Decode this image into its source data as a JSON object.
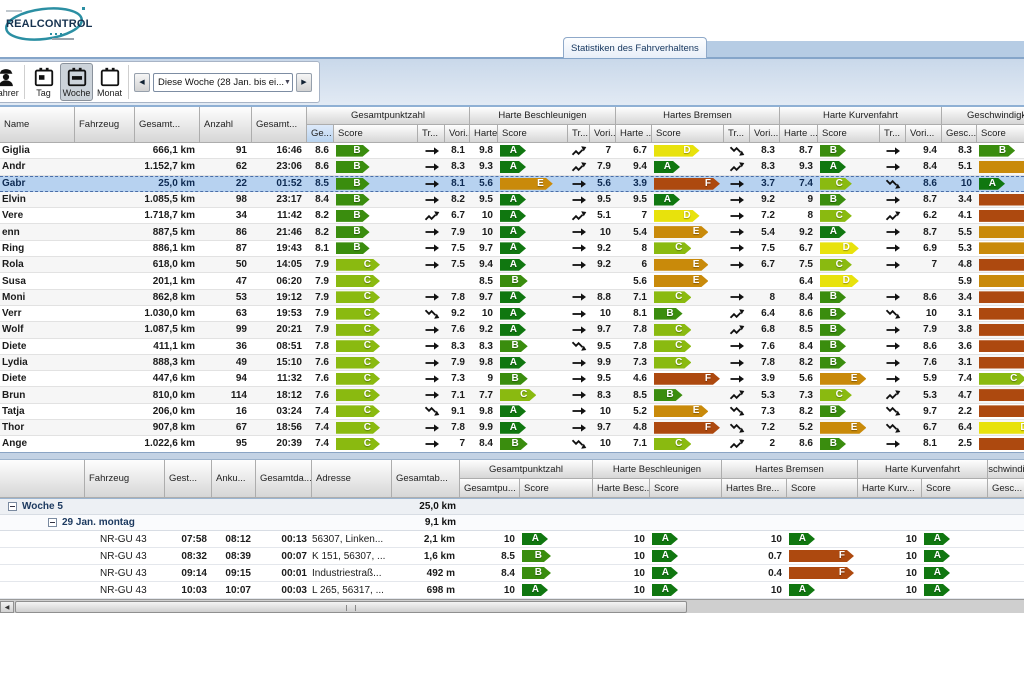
{
  "logo": {
    "brand": "REALCONTROL"
  },
  "tab": {
    "label": "Statistiken des Fahrverhaltens"
  },
  "toolbar": {
    "fahrer": "Fahrer",
    "tag": "Tag",
    "woche": "Woche",
    "monat": "Monat",
    "period": "Diese Woche (28 Jan. bis ei..."
  },
  "colors": {
    "A": "#107710",
    "B": "#3a8d0e",
    "C": "#8aba10",
    "D": "#e8e20c",
    "E": "#c98a0a",
    "F": "#ad490f",
    "selected_row": "#b7d2f0"
  },
  "top_table": {
    "headers": {
      "name": "Name",
      "fahrzeug": "Fahrzeug",
      "gesamt_km": "Gesamt...",
      "anzahl": "Anzahl",
      "gesamt_zeit": "Gesamt...",
      "ge": "Ge...",
      "score": "Score",
      "tr": "Tr...",
      "vori": "Vori...",
      "harte": "Harte ...",
      "gesc": "Gesc..."
    },
    "groups": {
      "gesamtpunktzahl": "Gesamtpunktzahl",
      "beschleunigen": "Harte Beschleunigen",
      "bremsen": "Hartes Bremsen",
      "kurvenfahrt": "Harte Kurvenfahrt",
      "geschwindigkeit": "Geschwindigkeits"
    },
    "rows": [
      {
        "name": "Giglia",
        "km": "666,1 km",
        "anzahl": "91",
        "zeit": "16:46",
        "gesamt": {
          "v": "8.6",
          "s": "B",
          "t": "flat",
          "p": "8.1"
        },
        "beschleunigen": {
          "v": "9.8",
          "s": "A",
          "t": "up",
          "p": "7"
        },
        "bremsen": {
          "v": "6.7",
          "s": "D",
          "t": "down",
          "p": "8.3"
        },
        "kurve": {
          "v": "8.7",
          "s": "B",
          "t": "flat",
          "p": "9.4"
        },
        "geschwindigkeit": {
          "v": "8.3",
          "s": "B"
        },
        "selected": false
      },
      {
        "name": "Andr",
        "km": "1.152,7 km",
        "anzahl": "62",
        "zeit": "23:06",
        "gesamt": {
          "v": "8.6",
          "s": "B",
          "t": "flat",
          "p": "8.3"
        },
        "beschleunigen": {
          "v": "9.3",
          "s": "A",
          "t": "up",
          "p": "7.9"
        },
        "bremsen": {
          "v": "9.4",
          "s": "A",
          "t": "up",
          "p": "8.3"
        },
        "kurve": {
          "v": "9.3",
          "s": "A",
          "t": "flat",
          "p": "8.4"
        },
        "geschwindigkeit": {
          "v": "5.1",
          "s": "E"
        },
        "selected": false
      },
      {
        "name": "Gabr",
        "km": "25,0 km",
        "anzahl": "22",
        "zeit": "01:52",
        "gesamt": {
          "v": "8.5",
          "s": "B",
          "t": "flat",
          "p": "8.1"
        },
        "beschleunigen": {
          "v": "5.6",
          "s": "E",
          "t": "flat",
          "p": "5.6"
        },
        "bremsen": {
          "v": "3.9",
          "s": "F",
          "t": "flat",
          "p": "3.7"
        },
        "kurve": {
          "v": "7.4",
          "s": "C",
          "t": "down",
          "p": "8.6"
        },
        "geschwindigkeit": {
          "v": "10",
          "s": "A"
        },
        "selected": true
      },
      {
        "name": "Elvin",
        "km": "1.085,5 km",
        "anzahl": "98",
        "zeit": "23:17",
        "gesamt": {
          "v": "8.4",
          "s": "B",
          "t": "flat",
          "p": "8.2"
        },
        "beschleunigen": {
          "v": "9.5",
          "s": "A",
          "t": "flat",
          "p": "9.5"
        },
        "bremsen": {
          "v": "9.5",
          "s": "A",
          "t": "flat",
          "p": "9.2"
        },
        "kurve": {
          "v": "9",
          "s": "B",
          "t": "flat",
          "p": "8.7"
        },
        "geschwindigkeit": {
          "v": "3.4",
          "s": "F"
        },
        "selected": false
      },
      {
        "name": "Vere",
        "km": "1.718,7 km",
        "anzahl": "34",
        "zeit": "11:42",
        "gesamt": {
          "v": "8.2",
          "s": "B",
          "t": "up",
          "p": "6.7"
        },
        "beschleunigen": {
          "v": "10",
          "s": "A",
          "t": "up",
          "p": "5.1"
        },
        "bremsen": {
          "v": "7",
          "s": "D",
          "t": "flat",
          "p": "7.2"
        },
        "kurve": {
          "v": "8",
          "s": "C",
          "t": "up",
          "p": "6.2"
        },
        "geschwindigkeit": {
          "v": "4.1",
          "s": "F"
        },
        "selected": false
      },
      {
        "name": "enn",
        "km": "887,5 km",
        "anzahl": "86",
        "zeit": "21:46",
        "gesamt": {
          "v": "8.2",
          "s": "B",
          "t": "flat",
          "p": "7.9"
        },
        "beschleunigen": {
          "v": "10",
          "s": "A",
          "t": "flat",
          "p": "10"
        },
        "bremsen": {
          "v": "5.4",
          "s": "E",
          "t": "flat",
          "p": "5.4"
        },
        "kurve": {
          "v": "9.2",
          "s": "A",
          "t": "flat",
          "p": "8.7"
        },
        "geschwindigkeit": {
          "v": "5.5",
          "s": "E"
        },
        "selected": false
      },
      {
        "name": "Ring",
        "km": "886,1 km",
        "anzahl": "87",
        "zeit": "19:43",
        "gesamt": {
          "v": "8.1",
          "s": "B",
          "t": "flat",
          "p": "7.5"
        },
        "beschleunigen": {
          "v": "9.7",
          "s": "A",
          "t": "flat",
          "p": "9.2"
        },
        "bremsen": {
          "v": "8",
          "s": "C",
          "t": "flat",
          "p": "7.5"
        },
        "kurve": {
          "v": "6.7",
          "s": "D",
          "t": "flat",
          "p": "6.9"
        },
        "geschwindigkeit": {
          "v": "5.3",
          "s": "E"
        },
        "selected": false
      },
      {
        "name": "Rola",
        "km": "618,0 km",
        "anzahl": "50",
        "zeit": "14:05",
        "gesamt": {
          "v": "7.9",
          "s": "C",
          "t": "flat",
          "p": "7.5"
        },
        "beschleunigen": {
          "v": "9.4",
          "s": "A",
          "t": "flat",
          "p": "9.2"
        },
        "bremsen": {
          "v": "6",
          "s": "E",
          "t": "flat",
          "p": "6.7"
        },
        "kurve": {
          "v": "7.5",
          "s": "C",
          "t": "flat",
          "p": "7"
        },
        "geschwindigkeit": {
          "v": "4.8",
          "s": "F"
        },
        "selected": false
      },
      {
        "name": "Susa",
        "km": "201,1 km",
        "anzahl": "47",
        "zeit": "06:20",
        "gesamt": {
          "v": "7.9",
          "s": "C",
          "t": "",
          "p": ""
        },
        "beschleunigen": {
          "v": "8.5",
          "s": "B",
          "t": "",
          "p": ""
        },
        "bremsen": {
          "v": "5.6",
          "s": "E",
          "t": "",
          "p": ""
        },
        "kurve": {
          "v": "6.4",
          "s": "D",
          "t": "",
          "p": ""
        },
        "geschwindigkeit": {
          "v": "5.9",
          "s": "E"
        },
        "selected": false
      },
      {
        "name": "Moni",
        "km": "862,8 km",
        "anzahl": "53",
        "zeit": "19:12",
        "gesamt": {
          "v": "7.9",
          "s": "C",
          "t": "flat",
          "p": "7.8"
        },
        "beschleunigen": {
          "v": "9.7",
          "s": "A",
          "t": "flat",
          "p": "8.8"
        },
        "bremsen": {
          "v": "7.1",
          "s": "C",
          "t": "flat",
          "p": "8"
        },
        "kurve": {
          "v": "8.4",
          "s": "B",
          "t": "flat",
          "p": "8.6"
        },
        "geschwindigkeit": {
          "v": "3.4",
          "s": "F"
        },
        "selected": false
      },
      {
        "name": "Verr",
        "km": "1.030,0 km",
        "anzahl": "63",
        "zeit": "19:53",
        "gesamt": {
          "v": "7.9",
          "s": "C",
          "t": "down",
          "p": "9.2"
        },
        "beschleunigen": {
          "v": "10",
          "s": "A",
          "t": "flat",
          "p": "10"
        },
        "bremsen": {
          "v": "8.1",
          "s": "B",
          "t": "up",
          "p": "6.4"
        },
        "kurve": {
          "v": "8.6",
          "s": "B",
          "t": "down",
          "p": "10"
        },
        "geschwindigkeit": {
          "v": "3.1",
          "s": "F"
        },
        "selected": false
      },
      {
        "name": "Wolf",
        "km": "1.087,5 km",
        "anzahl": "99",
        "zeit": "20:21",
        "gesamt": {
          "v": "7.9",
          "s": "C",
          "t": "flat",
          "p": "7.6"
        },
        "beschleunigen": {
          "v": "9.2",
          "s": "A",
          "t": "flat",
          "p": "9.7"
        },
        "bremsen": {
          "v": "7.8",
          "s": "C",
          "t": "up",
          "p": "6.8"
        },
        "kurve": {
          "v": "8.5",
          "s": "B",
          "t": "flat",
          "p": "7.9"
        },
        "geschwindigkeit": {
          "v": "3.8",
          "s": "F"
        },
        "selected": false
      },
      {
        "name": "Diete",
        "km": "411,1 km",
        "anzahl": "36",
        "zeit": "08:51",
        "gesamt": {
          "v": "7.8",
          "s": "C",
          "t": "flat",
          "p": "8.3"
        },
        "beschleunigen": {
          "v": "8.3",
          "s": "B",
          "t": "down",
          "p": "9.5"
        },
        "bremsen": {
          "v": "7.8",
          "s": "C",
          "t": "flat",
          "p": "7.6"
        },
        "kurve": {
          "v": "8.4",
          "s": "B",
          "t": "flat",
          "p": "8.6"
        },
        "geschwindigkeit": {
          "v": "3.6",
          "s": "F"
        },
        "selected": false
      },
      {
        "name": "Lydia",
        "km": "888,3 km",
        "anzahl": "49",
        "zeit": "15:10",
        "gesamt": {
          "v": "7.6",
          "s": "C",
          "t": "flat",
          "p": "7.9"
        },
        "beschleunigen": {
          "v": "9.8",
          "s": "A",
          "t": "flat",
          "p": "9.9"
        },
        "bremsen": {
          "v": "7.3",
          "s": "C",
          "t": "flat",
          "p": "7.8"
        },
        "kurve": {
          "v": "8.2",
          "s": "B",
          "t": "flat",
          "p": "7.6"
        },
        "geschwindigkeit": {
          "v": "3.1",
          "s": "F"
        },
        "selected": false
      },
      {
        "name": "Diete",
        "km": "447,6 km",
        "anzahl": "94",
        "zeit": "11:32",
        "gesamt": {
          "v": "7.6",
          "s": "C",
          "t": "flat",
          "p": "7.3"
        },
        "beschleunigen": {
          "v": "9",
          "s": "B",
          "t": "flat",
          "p": "9.5"
        },
        "bremsen": {
          "v": "4.6",
          "s": "F",
          "t": "flat",
          "p": "3.9"
        },
        "kurve": {
          "v": "5.6",
          "s": "E",
          "t": "flat",
          "p": "5.9"
        },
        "geschwindigkeit": {
          "v": "7.4",
          "s": "C"
        },
        "selected": false
      },
      {
        "name": "Brun",
        "km": "810,0 km",
        "anzahl": "114",
        "zeit": "18:12",
        "gesamt": {
          "v": "7.6",
          "s": "C",
          "t": "flat",
          "p": "7.1"
        },
        "beschleunigen": {
          "v": "7.7",
          "s": "C",
          "t": "flat",
          "p": "8.3"
        },
        "bremsen": {
          "v": "8.5",
          "s": "B",
          "t": "up",
          "p": "5.3"
        },
        "kurve": {
          "v": "7.3",
          "s": "C",
          "t": "up",
          "p": "5.3"
        },
        "geschwindigkeit": {
          "v": "4.7",
          "s": "F"
        },
        "selected": false
      },
      {
        "name": "Tatja",
        "km": "206,0 km",
        "anzahl": "16",
        "zeit": "03:24",
        "gesamt": {
          "v": "7.4",
          "s": "C",
          "t": "down",
          "p": "9.1"
        },
        "beschleunigen": {
          "v": "9.8",
          "s": "A",
          "t": "flat",
          "p": "10"
        },
        "bremsen": {
          "v": "5.2",
          "s": "E",
          "t": "down",
          "p": "7.3"
        },
        "kurve": {
          "v": "8.2",
          "s": "B",
          "t": "down",
          "p": "9.7"
        },
        "geschwindigkeit": {
          "v": "2.2",
          "s": "F"
        },
        "selected": false
      },
      {
        "name": "Thor",
        "km": "907,8 km",
        "anzahl": "67",
        "zeit": "18:56",
        "gesamt": {
          "v": "7.4",
          "s": "C",
          "t": "flat",
          "p": "7.8"
        },
        "beschleunigen": {
          "v": "9.9",
          "s": "A",
          "t": "flat",
          "p": "9.7"
        },
        "bremsen": {
          "v": "4.8",
          "s": "F",
          "t": "down",
          "p": "7.2"
        },
        "kurve": {
          "v": "5.2",
          "s": "E",
          "t": "down",
          "p": "6.7"
        },
        "geschwindigkeit": {
          "v": "6.4",
          "s": "D"
        },
        "selected": false
      },
      {
        "name": "Ange",
        "km": "1.022,6 km",
        "anzahl": "95",
        "zeit": "20:39",
        "gesamt": {
          "v": "7.4",
          "s": "C",
          "t": "flat",
          "p": "7"
        },
        "beschleunigen": {
          "v": "8.4",
          "s": "B",
          "t": "down",
          "p": "10"
        },
        "bremsen": {
          "v": "7.1",
          "s": "C",
          "t": "up",
          "p": "2"
        },
        "kurve": {
          "v": "8.6",
          "s": "B",
          "t": "flat",
          "p": "8.1"
        },
        "geschwindigkeit": {
          "v": "2.5",
          "s": "F"
        },
        "selected": false
      }
    ]
  },
  "bottom_table": {
    "headers": {
      "fahrzeug": "Fahrzeug",
      "gest": "Gest...",
      "anku": "Anku...",
      "gesamtda": "Gesamtda...",
      "adresse": "Adresse",
      "gesamtab": "Gesamtab...",
      "gesamtpu": "Gesamtpu...",
      "score": "Score",
      "harte_besc": "Harte Besc...",
      "hartes_bre": "Hartes Bre...",
      "harte_kurv": "Harte Kurv...",
      "gesc": "Gesc..."
    },
    "groups": {
      "gesamtpunktzahl": "Gesamtpunktzahl",
      "beschleunigen": "Harte Beschleunigen",
      "bremsen": "Hartes Bremsen",
      "kurvenfahrt": "Harte Kurvenfahrt",
      "geschwindigkeit": "Geschwindigkeits"
    },
    "week": {
      "label": "Woche 5",
      "total": "25,0 km"
    },
    "day": {
      "label": "29 Jan. montag",
      "total": "9,1 km"
    },
    "rows": [
      {
        "fahrzeug": "NR-GU 43",
        "gest": "07:58",
        "anku": "08:12",
        "dauer": "00:13",
        "adresse": "56307, Linken...",
        "abstand": "2,1 km",
        "gesamt": {
          "v": "10",
          "s": "A"
        },
        "beschleunigen": {
          "v": "10",
          "s": "A"
        },
        "bremsen": {
          "v": "10",
          "s": "A"
        },
        "kurve": {
          "v": "10",
          "s": "A"
        }
      },
      {
        "fahrzeug": "NR-GU 43",
        "gest": "08:32",
        "anku": "08:39",
        "dauer": "00:07",
        "adresse": "K 151, 56307, ...",
        "abstand": "1,6 km",
        "gesamt": {
          "v": "8.5",
          "s": "B"
        },
        "beschleunigen": {
          "v": "10",
          "s": "A"
        },
        "bremsen": {
          "v": "0.7",
          "s": "F"
        },
        "kurve": {
          "v": "10",
          "s": "A"
        }
      },
      {
        "fahrzeug": "NR-GU 43",
        "gest": "09:14",
        "anku": "09:15",
        "dauer": "00:01",
        "adresse": "Industriestraß...",
        "abstand": "492 m",
        "gesamt": {
          "v": "8.4",
          "s": "B"
        },
        "beschleunigen": {
          "v": "10",
          "s": "A"
        },
        "bremsen": {
          "v": "0.4",
          "s": "F"
        },
        "kurve": {
          "v": "10",
          "s": "A"
        }
      },
      {
        "fahrzeug": "NR-GU 43",
        "gest": "10:03",
        "anku": "10:07",
        "dauer": "00:03",
        "adresse": "L 265, 56317, ...",
        "abstand": "698 m",
        "gesamt": {
          "v": "10",
          "s": "A"
        },
        "beschleunigen": {
          "v": "10",
          "s": "A"
        },
        "bremsen": {
          "v": "10",
          "s": "A"
        },
        "kurve": {
          "v": "10",
          "s": "A"
        }
      }
    ]
  }
}
